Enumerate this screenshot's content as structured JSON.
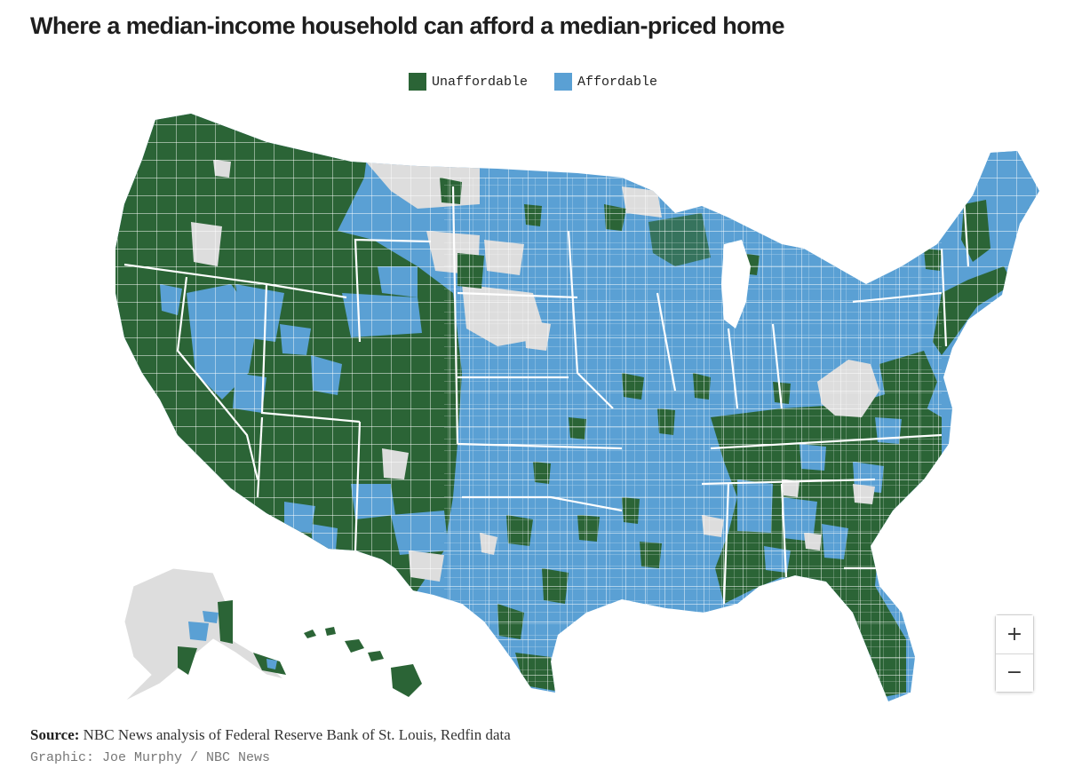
{
  "title": "Where a median-income household can afford a median-priced home",
  "legend": [
    {
      "label": "Unaffordable",
      "color": "#2b6436"
    },
    {
      "label": "Affordable",
      "color": "#5aa0d4"
    }
  ],
  "colors": {
    "unaffordable": "#2b6436",
    "affordable": "#5aa0d4",
    "no_data": "#dddddd",
    "border": "#ffffff"
  },
  "zoom": {
    "in_label": "+",
    "out_label": "−"
  },
  "source": {
    "label": "Source:",
    "text": "NBC News analysis of Federal Reserve Bank of St. Louis, Redfin data"
  },
  "credit": "Graphic: Joe Murphy / NBC News"
}
